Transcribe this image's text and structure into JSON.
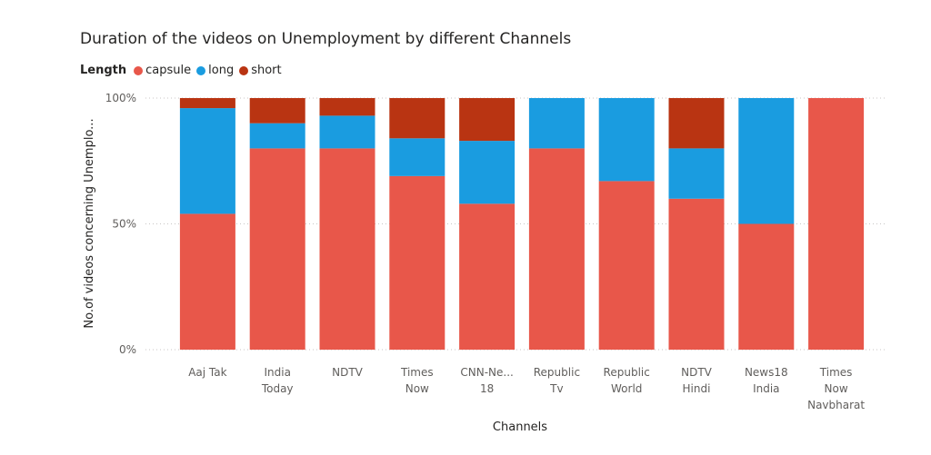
{
  "chart_data": {
    "type": "bar",
    "stacked": "percent",
    "title": "Duration of the videos on Unemployment by different Channels",
    "xlabel": "Channels",
    "ylabel": "No.of videos concerning Unemplo...",
    "ylim": [
      0,
      100
    ],
    "yticks": [
      {
        "value": 0,
        "label": "0%"
      },
      {
        "value": 50,
        "label": "50%"
      },
      {
        "value": 100,
        "label": "100%"
      }
    ],
    "legend": {
      "title": "Length",
      "position": "top-left",
      "entries": [
        "capsule",
        "long",
        "short"
      ]
    },
    "categories": [
      [
        "Aaj Tak"
      ],
      [
        "India",
        "Today"
      ],
      [
        "NDTV"
      ],
      [
        "Times",
        "Now"
      ],
      [
        "CNN-Ne...",
        "18"
      ],
      [
        "Republic",
        "Tv"
      ],
      [
        "Republic",
        "World"
      ],
      [
        "NDTV",
        "Hindi"
      ],
      [
        "News18",
        "India"
      ],
      [
        "Times",
        "Now",
        "Navbharat"
      ]
    ],
    "series": [
      {
        "name": "capsule",
        "color": "#E8574A",
        "values": [
          54,
          80,
          80,
          69,
          58,
          80,
          67,
          60,
          50,
          100
        ]
      },
      {
        "name": "long",
        "color": "#1A9CE0",
        "values": [
          42,
          10,
          13,
          15,
          25,
          20,
          33,
          20,
          50,
          0
        ]
      },
      {
        "name": "short",
        "color": "#B93412",
        "values": [
          4,
          10,
          7,
          16,
          17,
          0,
          0,
          20,
          0,
          0
        ]
      }
    ]
  }
}
